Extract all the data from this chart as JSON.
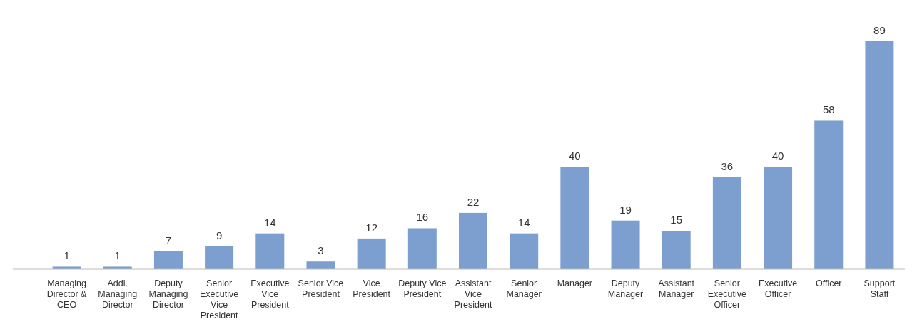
{
  "chart_data": {
    "type": "bar",
    "categories": [
      "Managing Director & CEO",
      "Addl. Managing Director",
      "Deputy Managing Director",
      "Senior Executive Vice President",
      "Executive Vice President",
      "Senior Vice President",
      "Vice President",
      "Deputy Vice President",
      "Assistant Vice President",
      "Senior Manager",
      "Manager",
      "Deputy Manager",
      "Assistant Manager",
      "Senior Executive Officer",
      "Executive Officer",
      "Officer",
      "Support Staff"
    ],
    "values": [
      1,
      1,
      7,
      9,
      14,
      3,
      12,
      16,
      22,
      14,
      40,
      19,
      15,
      36,
      40,
      58,
      89
    ],
    "color": "#7c9fd0",
    "data_labels": true
  }
}
